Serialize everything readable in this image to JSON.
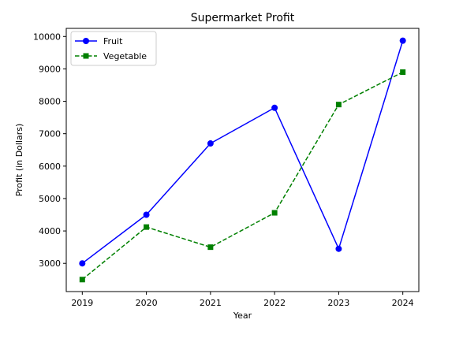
{
  "chart_data": {
    "type": "line",
    "title": "Supermarket Profit",
    "xlabel": "Year",
    "ylabel": "Profit (in Dollars)",
    "x": [
      2019,
      2020,
      2021,
      2022,
      2023,
      2024
    ],
    "xticks": [
      "2019",
      "2020",
      "2021",
      "2022",
      "2023",
      "2024"
    ],
    "yticks": [
      "3000",
      "4000",
      "5000",
      "6000",
      "7000",
      "8000",
      "9000",
      "10000"
    ],
    "xlim": [
      2018.75,
      2024.25
    ],
    "ylim": [
      2130,
      10250
    ],
    "grid": false,
    "legend_position": "top-left",
    "series": [
      {
        "name": "Fruit",
        "values": [
          3000,
          4500,
          6700,
          7800,
          3450,
          9870
        ],
        "color": "#0000ff",
        "line_style": "solid",
        "marker": "circle"
      },
      {
        "name": "Vegetable",
        "values": [
          2500,
          4120,
          3500,
          4560,
          7900,
          8900
        ],
        "color": "#008000",
        "line_style": "dashed",
        "marker": "square"
      }
    ]
  }
}
